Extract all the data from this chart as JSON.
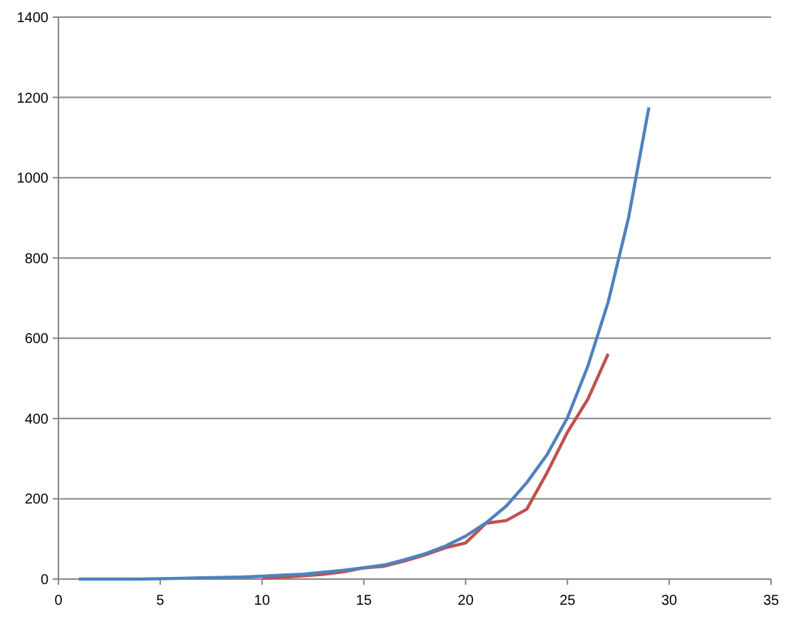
{
  "chart_data": {
    "type": "line",
    "xlim": [
      0,
      35
    ],
    "xticks": [
      0,
      5,
      10,
      15,
      20,
      25,
      30,
      35
    ],
    "ylim": [
      0,
      1400
    ],
    "yticks": [
      0,
      200,
      400,
      600,
      800,
      1000,
      1200,
      1400
    ],
    "grid": "y",
    "series": [
      {
        "color": "#c0504d",
        "x": [
          10,
          11,
          12,
          13,
          14,
          15,
          16,
          17,
          18,
          19,
          20,
          21,
          22,
          23,
          24,
          25,
          26,
          27
        ],
        "values": [
          2,
          5,
          8,
          12,
          18,
          28,
          32,
          45,
          60,
          78,
          90,
          139,
          146,
          174,
          265,
          366,
          448,
          561
        ]
      },
      {
        "color": "#4f81bd",
        "x": [
          1,
          2,
          3,
          4,
          5,
          6,
          7,
          8,
          9,
          10,
          11,
          12,
          13,
          14,
          15,
          16,
          17,
          18,
          19,
          20,
          21,
          22,
          23,
          24,
          25,
          26,
          27,
          28,
          29
        ],
        "values": [
          0,
          0,
          0,
          0,
          1,
          2,
          3,
          4,
          5,
          7,
          10,
          12,
          17,
          22,
          28,
          35,
          48,
          63,
          82,
          107,
          140,
          182,
          240,
          310,
          402,
          530,
          690,
          900,
          1175
        ]
      }
    ]
  }
}
